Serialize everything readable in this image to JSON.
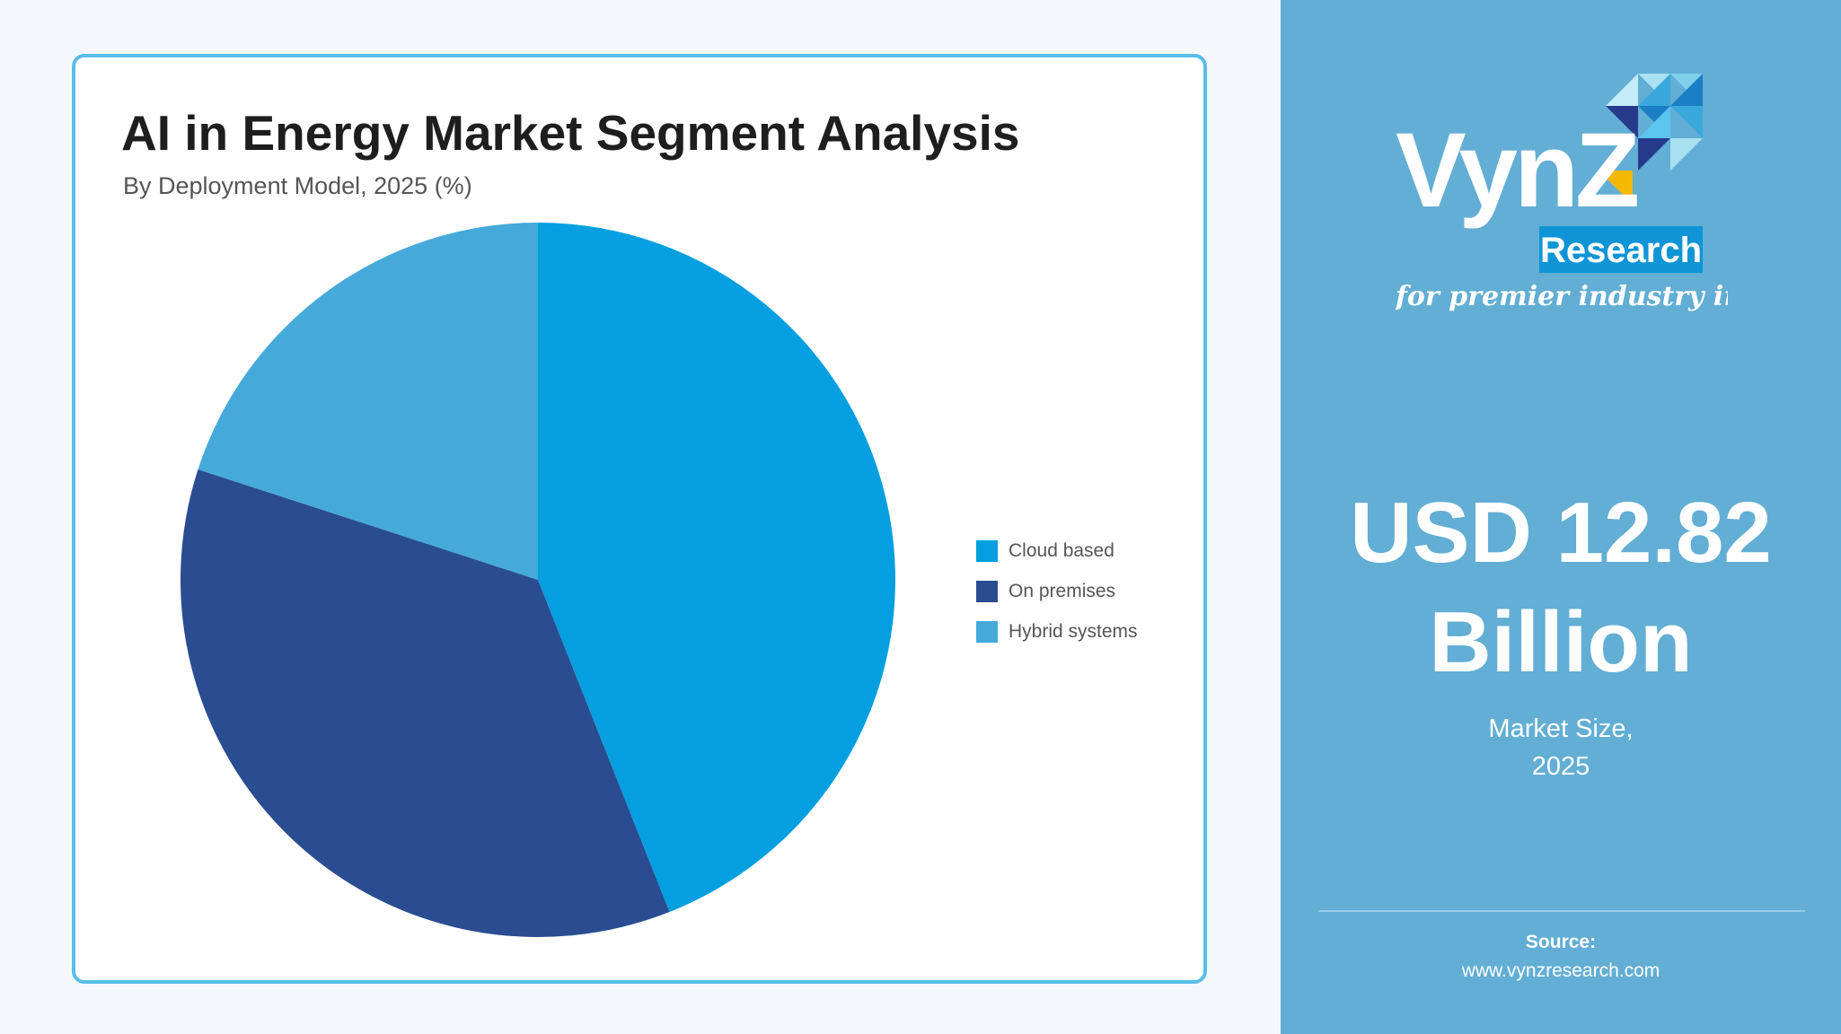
{
  "chart_data": {
    "type": "pie",
    "title": "AI in Energy Market Segment Analysis",
    "subtitle": "By Deployment Model, 2025 (%)",
    "categories": [
      "Cloud based",
      "On premises",
      "Hybrid systems"
    ],
    "values": [
      44,
      36,
      20
    ],
    "colors": [
      "#039fe0",
      "#2a4d91",
      "#45aad9"
    ],
    "legend_position": "right"
  },
  "sidebar": {
    "logo": {
      "brand": "VynZ",
      "sub": "Research",
      "tagline": "for premier industry insights"
    },
    "market_value_line1": "USD 12.82",
    "market_value_line2": "Billion",
    "market_caption_line1": "Market Size,",
    "market_caption_line2": "2025",
    "source_label": "Source:",
    "source_url": "www.vynzresearch.com",
    "background_color": "#62aed4"
  }
}
